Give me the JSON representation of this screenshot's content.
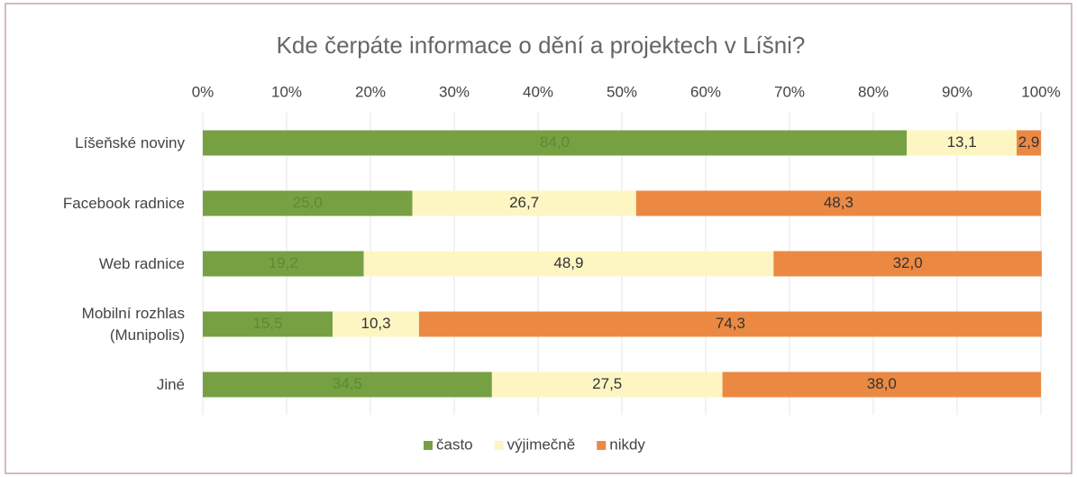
{
  "chart_data": {
    "type": "stacked_bar_horizontal",
    "title": "Kde čerpáte informace o dění a projektech v Líšni?",
    "categories": [
      "Líšeňské noviny",
      "Facebook radnice",
      "Web radnice",
      "Mobilní rozhlas (Munipolis)",
      "Jiné"
    ],
    "series": [
      {
        "name": "často",
        "color": "#77a043",
        "label_color": "#5c8a33",
        "values": [
          84.0,
          25.0,
          19.2,
          15.5,
          34.5
        ],
        "value_labels": [
          "84,0",
          "25,0",
          "19,2",
          "15,5",
          "34,5"
        ]
      },
      {
        "name": "výjimečně",
        "color": "#fdf6c3",
        "label_color": "#333333",
        "values": [
          13.1,
          26.7,
          48.9,
          10.3,
          27.5
        ],
        "value_labels": [
          "13,1",
          "26,7",
          "48,9",
          "10,3",
          "27,5"
        ]
      },
      {
        "name": "nikdy",
        "color": "#eb8943",
        "label_color": "#333333",
        "values": [
          2.9,
          48.3,
          32.0,
          74.3,
          38.0
        ],
        "value_labels": [
          "2,9",
          "48,3",
          "32,0",
          "74,3",
          "38,0"
        ]
      }
    ],
    "xlim": [
      0,
      100
    ],
    "xticks": [
      {
        "value": 0,
        "label": "0%"
      },
      {
        "value": 10,
        "label": "10%"
      },
      {
        "value": 20,
        "label": "20%"
      },
      {
        "value": 30,
        "label": "30%"
      },
      {
        "value": 40,
        "label": "40%"
      },
      {
        "value": 50,
        "label": "50%"
      },
      {
        "value": 60,
        "label": "60%"
      },
      {
        "value": 70,
        "label": "70%"
      },
      {
        "value": 80,
        "label": "80%"
      },
      {
        "value": 90,
        "label": "90%"
      },
      {
        "value": 100,
        "label": "100%"
      }
    ],
    "grid": true,
    "legend": "bottom"
  }
}
